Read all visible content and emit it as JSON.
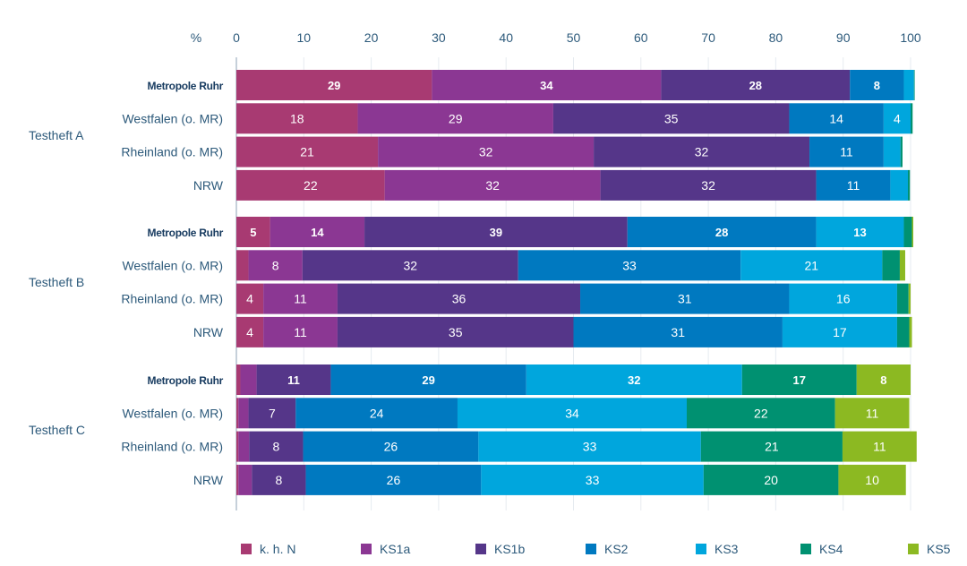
{
  "chart_data": {
    "type": "bar",
    "orientation": "horizontal",
    "stacked": true,
    "title": "",
    "xlabel": "%",
    "ylabel": "",
    "xlim": [
      0,
      100
    ],
    "x_ticks": [
      0,
      10,
      20,
      30,
      40,
      50,
      60,
      70,
      80,
      90,
      100
    ],
    "grid": true,
    "legend_position": "bottom",
    "series": [
      {
        "name": "k. h. N",
        "color": "#a83a72"
      },
      {
        "name": "KS1a",
        "color": "#8b3793"
      },
      {
        "name": "KS1b",
        "color": "#553689"
      },
      {
        "name": "KS2",
        "color": "#0079c0"
      },
      {
        "name": "KS3",
        "color": "#00a6dd"
      },
      {
        "name": "KS4",
        "color": "#009171"
      },
      {
        "name": "KS5",
        "color": "#8cb922"
      }
    ],
    "groups": [
      {
        "label": "Testheft A",
        "rows": [
          {
            "label": "Metropole Ruhr",
            "bold": true,
            "values": [
              29,
              34,
              28,
              8,
              1.5,
              0.1,
              0
            ],
            "labels": [
              "29",
              "34",
              "28",
              "8",
              "",
              "",
              ""
            ]
          },
          {
            "label": "Westfalen (o. MR)",
            "bold": false,
            "values": [
              18,
              29,
              35,
              14,
              4,
              0.3,
              0
            ],
            "labels": [
              "18",
              "29",
              "35",
              "14",
              "4",
              "",
              ""
            ]
          },
          {
            "label": "Rheinland (o. MR)",
            "bold": false,
            "values": [
              21,
              32,
              32,
              11,
              2.5,
              0.3,
              0
            ],
            "labels": [
              "21",
              "32",
              "32",
              "11",
              "",
              "",
              ""
            ]
          },
          {
            "label": "NRW",
            "bold": false,
            "values": [
              22,
              32,
              32,
              11,
              2.6,
              0.3,
              0
            ],
            "labels": [
              "22",
              "32",
              "32",
              "11",
              "",
              "",
              ""
            ]
          }
        ]
      },
      {
        "label": "Testheft B",
        "rows": [
          {
            "label": "Metropole Ruhr",
            "bold": true,
            "values": [
              5,
              14,
              39,
              28,
              13,
              1.2,
              0.2
            ],
            "labels": [
              "5",
              "14",
              "39",
              "28",
              "13",
              "",
              ""
            ]
          },
          {
            "label": "Westfalen (o. MR)",
            "bold": false,
            "values": [
              1.8,
              8,
              32,
              33,
              21,
              2.6,
              0.8
            ],
            "labels": [
              "",
              "8",
              "32",
              "33",
              "21",
              "",
              ""
            ]
          },
          {
            "label": "Rheinland (o. MR)",
            "bold": false,
            "values": [
              4,
              11,
              36,
              31,
              16,
              1.7,
              0.3
            ],
            "labels": [
              "4",
              "11",
              "36",
              "31",
              "16",
              "",
              ""
            ]
          },
          {
            "label": "NRW",
            "bold": false,
            "values": [
              4,
              11,
              35,
              31,
              17,
              1.8,
              0.4
            ],
            "labels": [
              "4",
              "11",
              "35",
              "31",
              "17",
              "",
              ""
            ]
          }
        ]
      },
      {
        "label": "Testheft C",
        "rows": [
          {
            "label": "Metropole Ruhr",
            "bold": true,
            "values": [
              0.6,
              2.4,
              11,
              29,
              32,
              17,
              8
            ],
            "labels": [
              "",
              "",
              "11",
              "29",
              "32",
              "17",
              "8"
            ]
          },
          {
            "label": "Westfalen (o. MR)",
            "bold": false,
            "values": [
              0.3,
              1.5,
              7,
              24,
              34,
              22,
              11
            ],
            "labels": [
              "",
              "",
              "7",
              "24",
              "34",
              "22",
              "11"
            ]
          },
          {
            "label": "Rheinland (o. MR)",
            "bold": false,
            "values": [
              0.3,
              1.6,
              8,
              26,
              33,
              21,
              11
            ],
            "labels": [
              "",
              "",
              "8",
              "26",
              "33",
              "21",
              "11"
            ]
          },
          {
            "label": "NRW",
            "bold": false,
            "values": [
              0.3,
              2.0,
              8,
              26,
              33,
              20,
              10
            ],
            "labels": [
              "",
              "",
              "8",
              "26",
              "33",
              "20",
              "10"
            ]
          }
        ]
      }
    ]
  }
}
